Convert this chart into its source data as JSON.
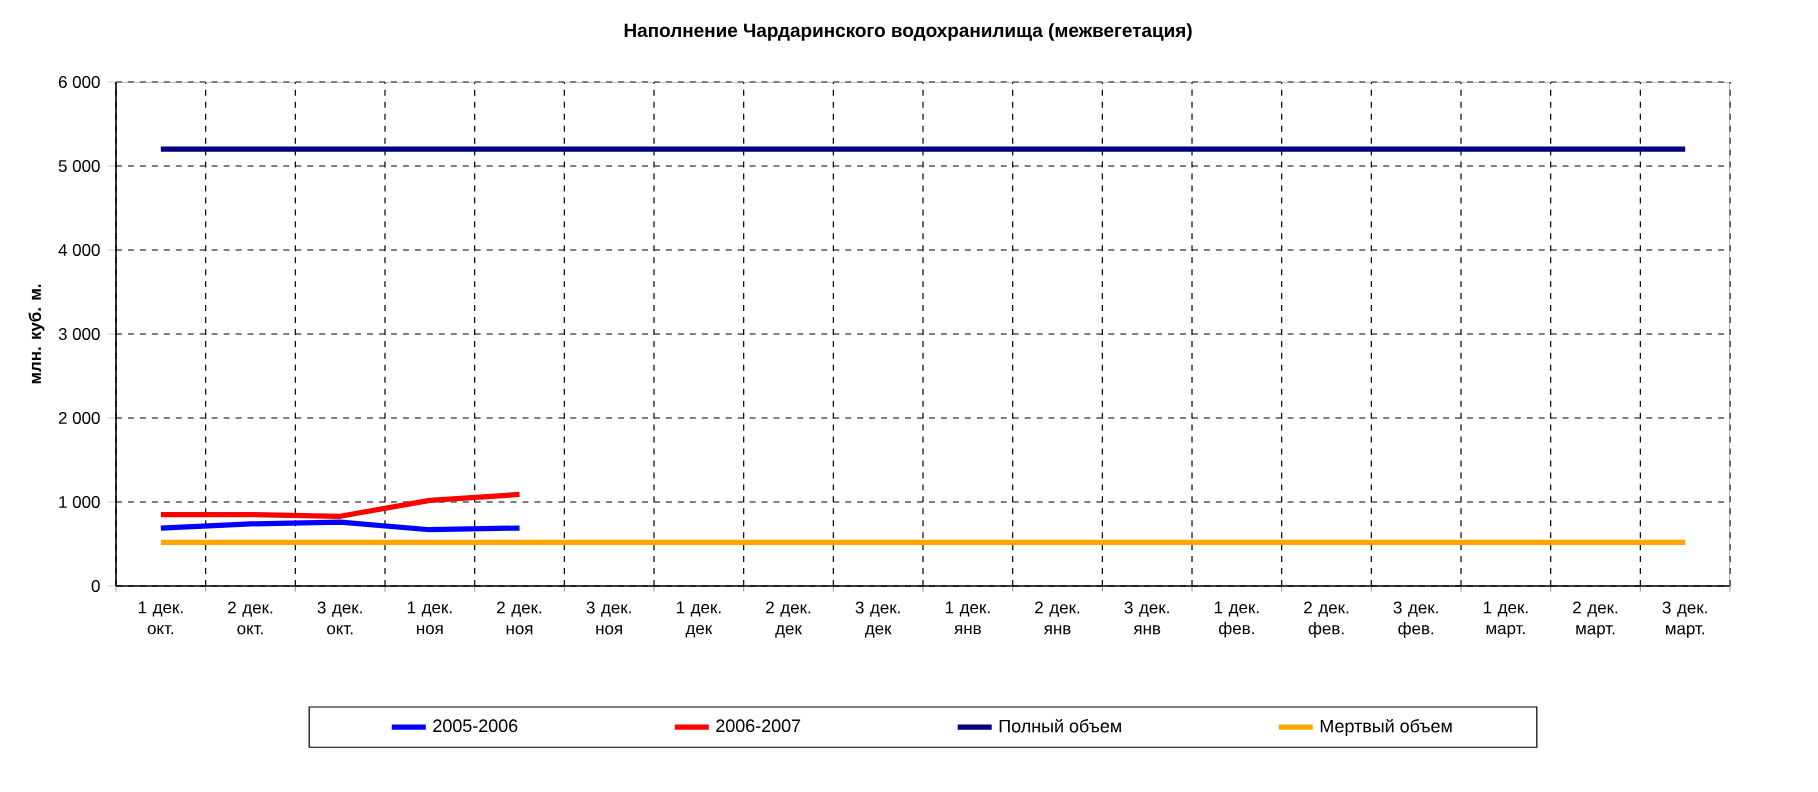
{
  "chart_data": {
    "type": "line",
    "title": "Наполнение Чардаринского водохранилища (межвегетация)",
    "ylabel": "млн. куб. м.",
    "categories": [
      "1 дек. окт.",
      "2 дек. окт.",
      "3 дек. окт.",
      "1 дек. ноя",
      "2 дек. ноя",
      "3 дек. ноя",
      "1 дек. дек",
      "2 дек. дек",
      "3 дек. дек",
      "1 дек. янв",
      "2 дек. янв",
      "3 дек. янв",
      "1 дек. фев.",
      "2 дек. фев.",
      "3 дек. фев.",
      "1 дек. март.",
      "2 дек. март.",
      "3 дек. март."
    ],
    "series": [
      {
        "name": "2005-2006",
        "color": "#0000ff",
        "values": [
          690,
          740,
          760,
          670,
          690,
          null,
          null,
          null,
          null,
          null,
          null,
          null,
          null,
          null,
          null,
          null,
          null,
          null
        ]
      },
      {
        "name": "2006-2007",
        "color": "#ff0000",
        "values": [
          850,
          850,
          830,
          1020,
          1090,
          null,
          null,
          null,
          null,
          null,
          null,
          null,
          null,
          null,
          null,
          null,
          null,
          null
        ]
      },
      {
        "name": "Полный объем",
        "color": "#000080",
        "values": [
          5200,
          5200,
          5200,
          5200,
          5200,
          5200,
          5200,
          5200,
          5200,
          5200,
          5200,
          5200,
          5200,
          5200,
          5200,
          5200,
          5200,
          5200
        ]
      },
      {
        "name": "Мертвый объем",
        "color": "#ffa500",
        "values": [
          520,
          520,
          520,
          520,
          520,
          520,
          520,
          520,
          520,
          520,
          520,
          520,
          520,
          520,
          520,
          520,
          520,
          520
        ]
      }
    ],
    "ylim": [
      0,
      6000
    ],
    "yticks": [
      {
        "value": 0,
        "label": "0"
      },
      {
        "value": 1000,
        "label": "1 000"
      },
      {
        "value": 2000,
        "label": "2 000"
      },
      {
        "value": 3000,
        "label": "3 000"
      },
      {
        "value": 4000,
        "label": "4 000"
      },
      {
        "value": 5000,
        "label": "5 000"
      },
      {
        "value": 6000,
        "label": "6 000"
      }
    ],
    "grid": true,
    "legend": "bottom",
    "marker": "none",
    "line_style": "solid"
  }
}
